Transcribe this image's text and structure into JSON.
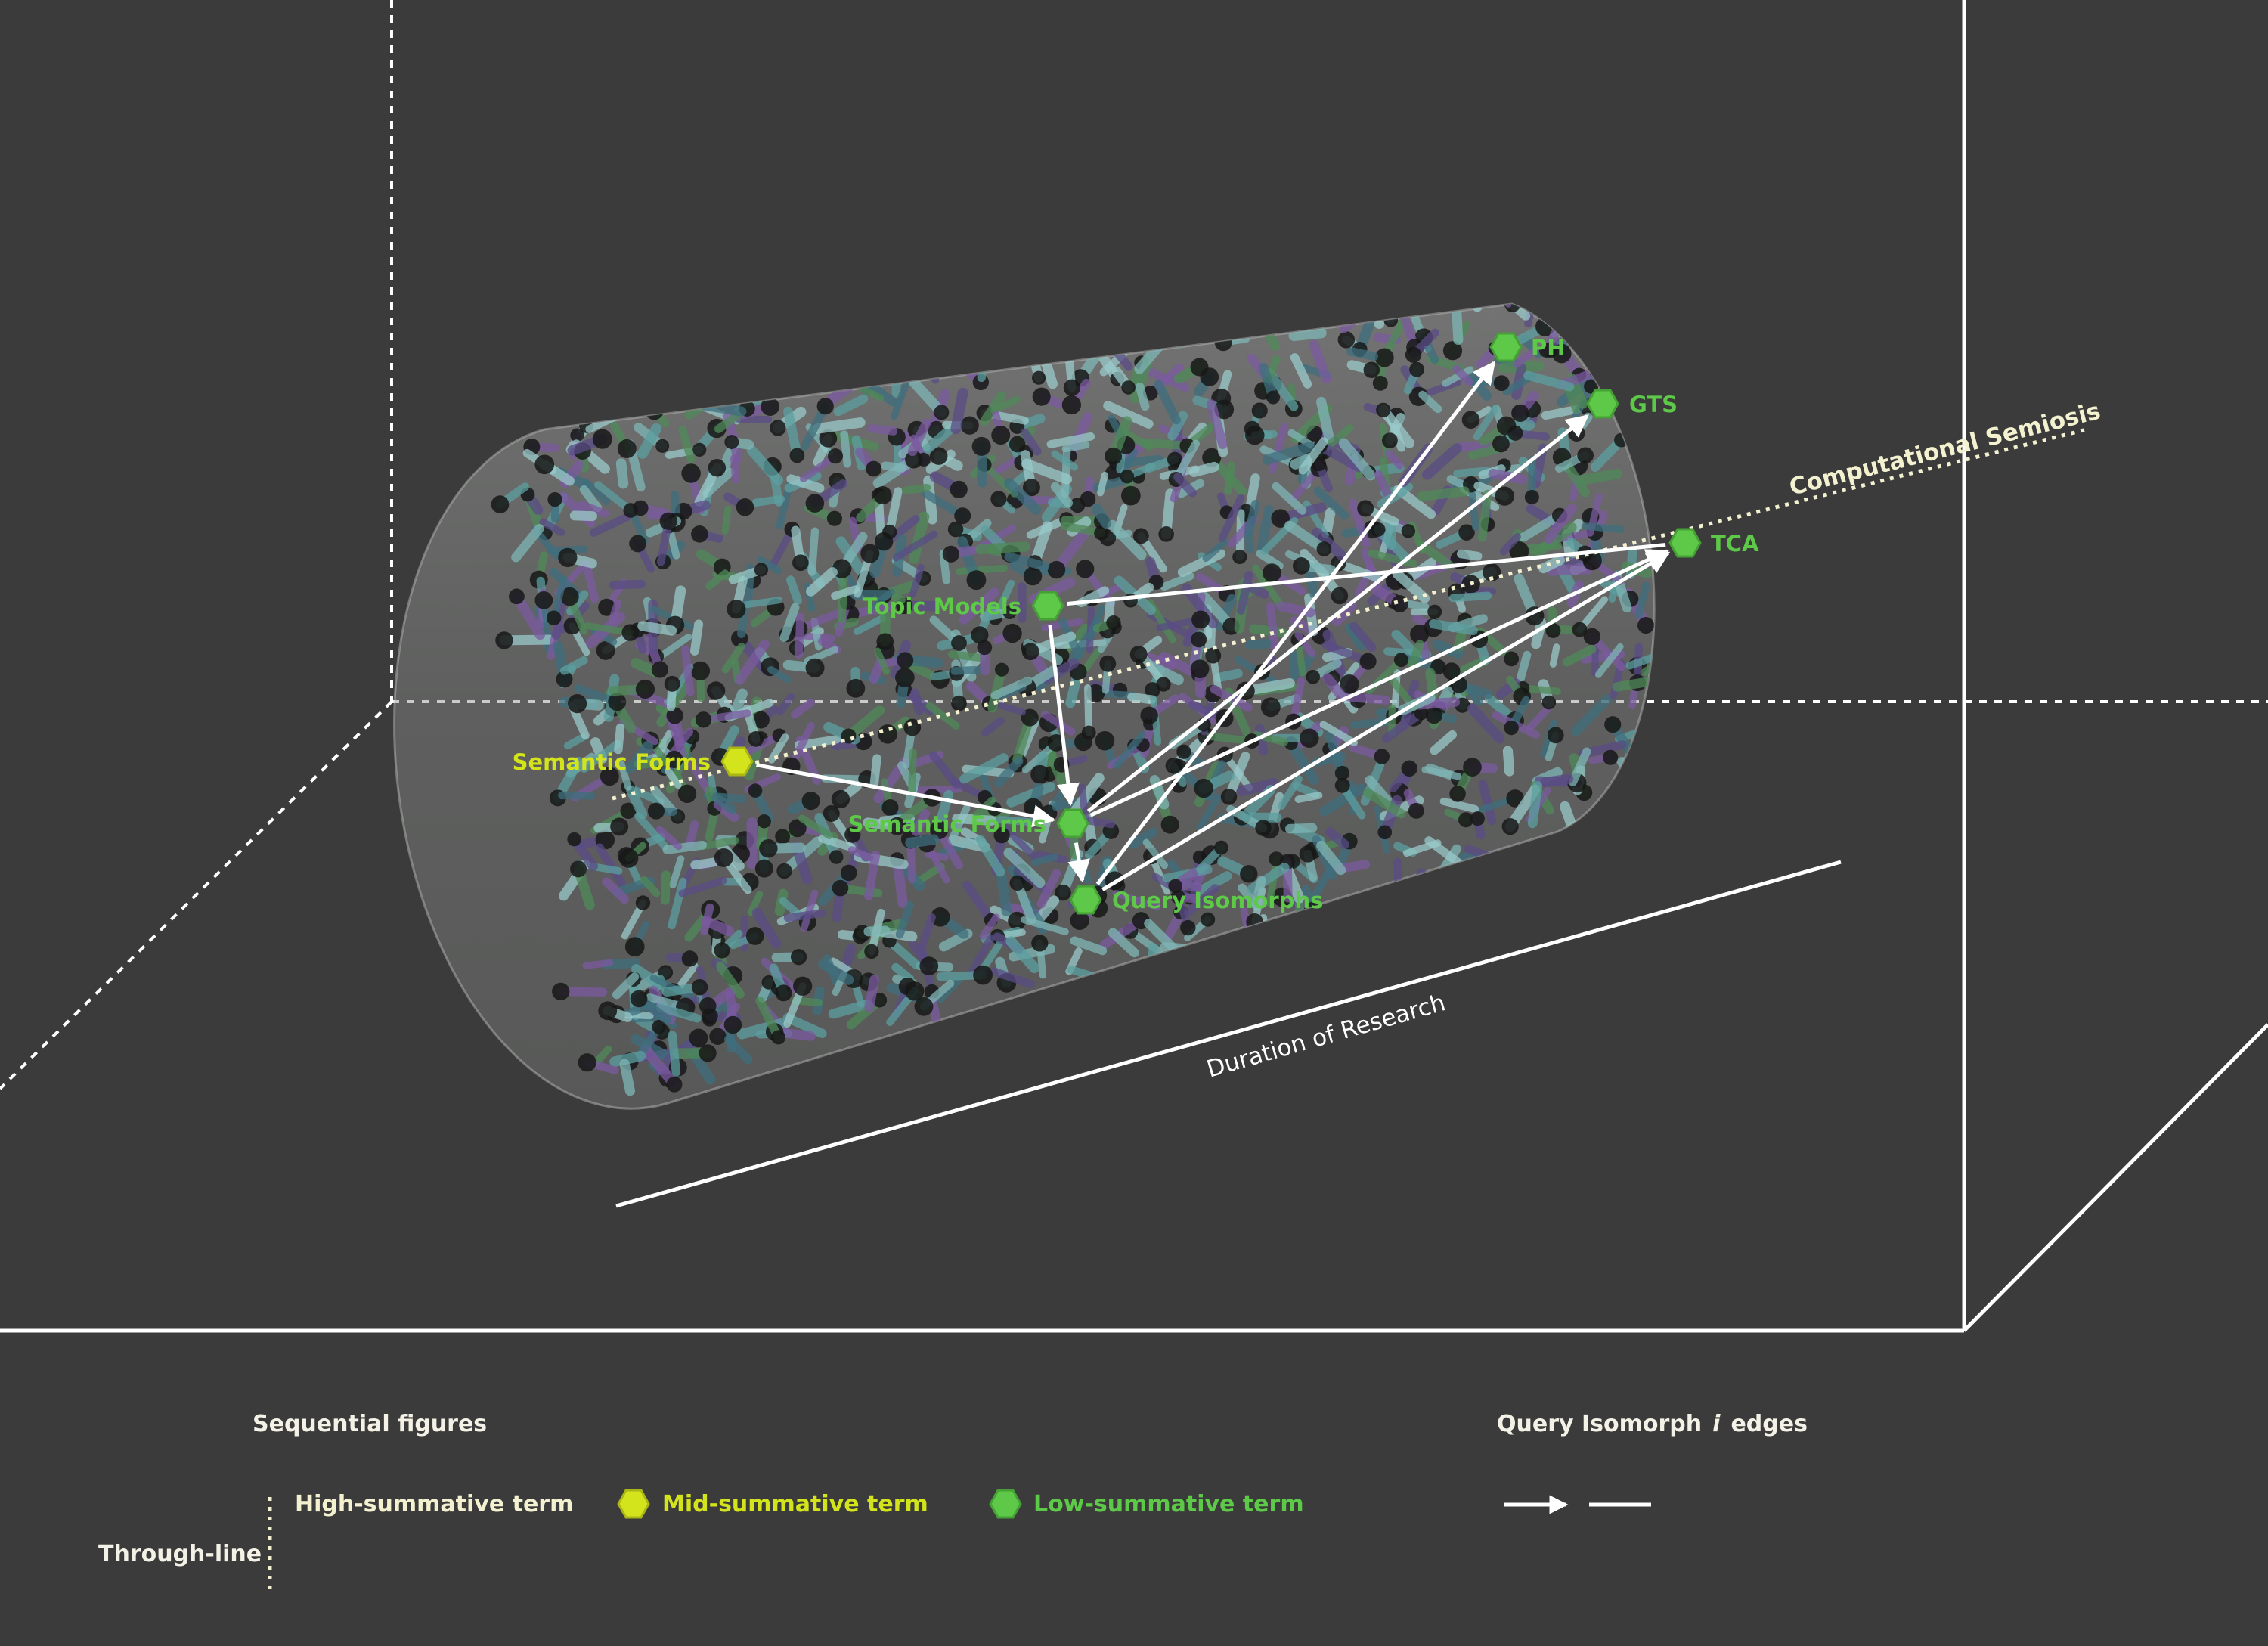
{
  "colors": {
    "background": "#3a3b3a",
    "frame": "#ffffff",
    "high_summative": "#f4f1d0",
    "mid_summative": "#d3e31c",
    "low_summative": "#5ec948",
    "edge": "#ffffff",
    "cylinder_fill": "#8a8b8a",
    "tube_palette": [
      "#5c9fa0",
      "#7fb6b6",
      "#5a4c86",
      "#7b5aa0",
      "#4f8a58",
      "#3f6f7e",
      "#9ac9c9"
    ]
  },
  "diagram": {
    "through_line_label": "Computational Semiosis",
    "axis_label": "Duration of Research",
    "nodes": [
      {
        "id": "semantic-forms-mid",
        "label": "Semantic Forms",
        "level": "mid"
      },
      {
        "id": "topic-models",
        "label": "Topic Models",
        "level": "low"
      },
      {
        "id": "semantic-forms-low",
        "label": "Semantic Forms",
        "level": "low"
      },
      {
        "id": "query-isomorphs",
        "label": "Query Isomorphs",
        "level": "low"
      },
      {
        "id": "ph",
        "label": "PH",
        "level": "low"
      },
      {
        "id": "gts",
        "label": "GTS",
        "level": "low"
      },
      {
        "id": "tca",
        "label": "TCA",
        "level": "low"
      }
    ],
    "edges": [
      {
        "from": "semantic-forms-mid",
        "to": "semantic-forms-low",
        "arrow": true
      },
      {
        "from": "topic-models",
        "to": "semantic-forms-low",
        "arrow": true
      },
      {
        "from": "topic-models",
        "to": "tca",
        "arrow": false
      },
      {
        "from": "semantic-forms-low",
        "to": "query-isomorphs",
        "arrow": true
      },
      {
        "from": "semantic-forms-low",
        "to": "gts",
        "arrow": true
      },
      {
        "from": "semantic-forms-low",
        "to": "tca",
        "arrow": true
      },
      {
        "from": "query-isomorphs",
        "to": "ph",
        "arrow": true
      },
      {
        "from": "query-isomorphs",
        "to": "tca",
        "arrow": true
      }
    ]
  },
  "legend": {
    "sequential_title": "Sequential figures",
    "through_line": "Through-line",
    "high": "High-summative term",
    "mid": "Mid-summative term",
    "low": "Low-summative term",
    "edges_title_pre": "Query Isomorph",
    "edges_title_var": "i",
    "edges_title_post": "edges"
  }
}
